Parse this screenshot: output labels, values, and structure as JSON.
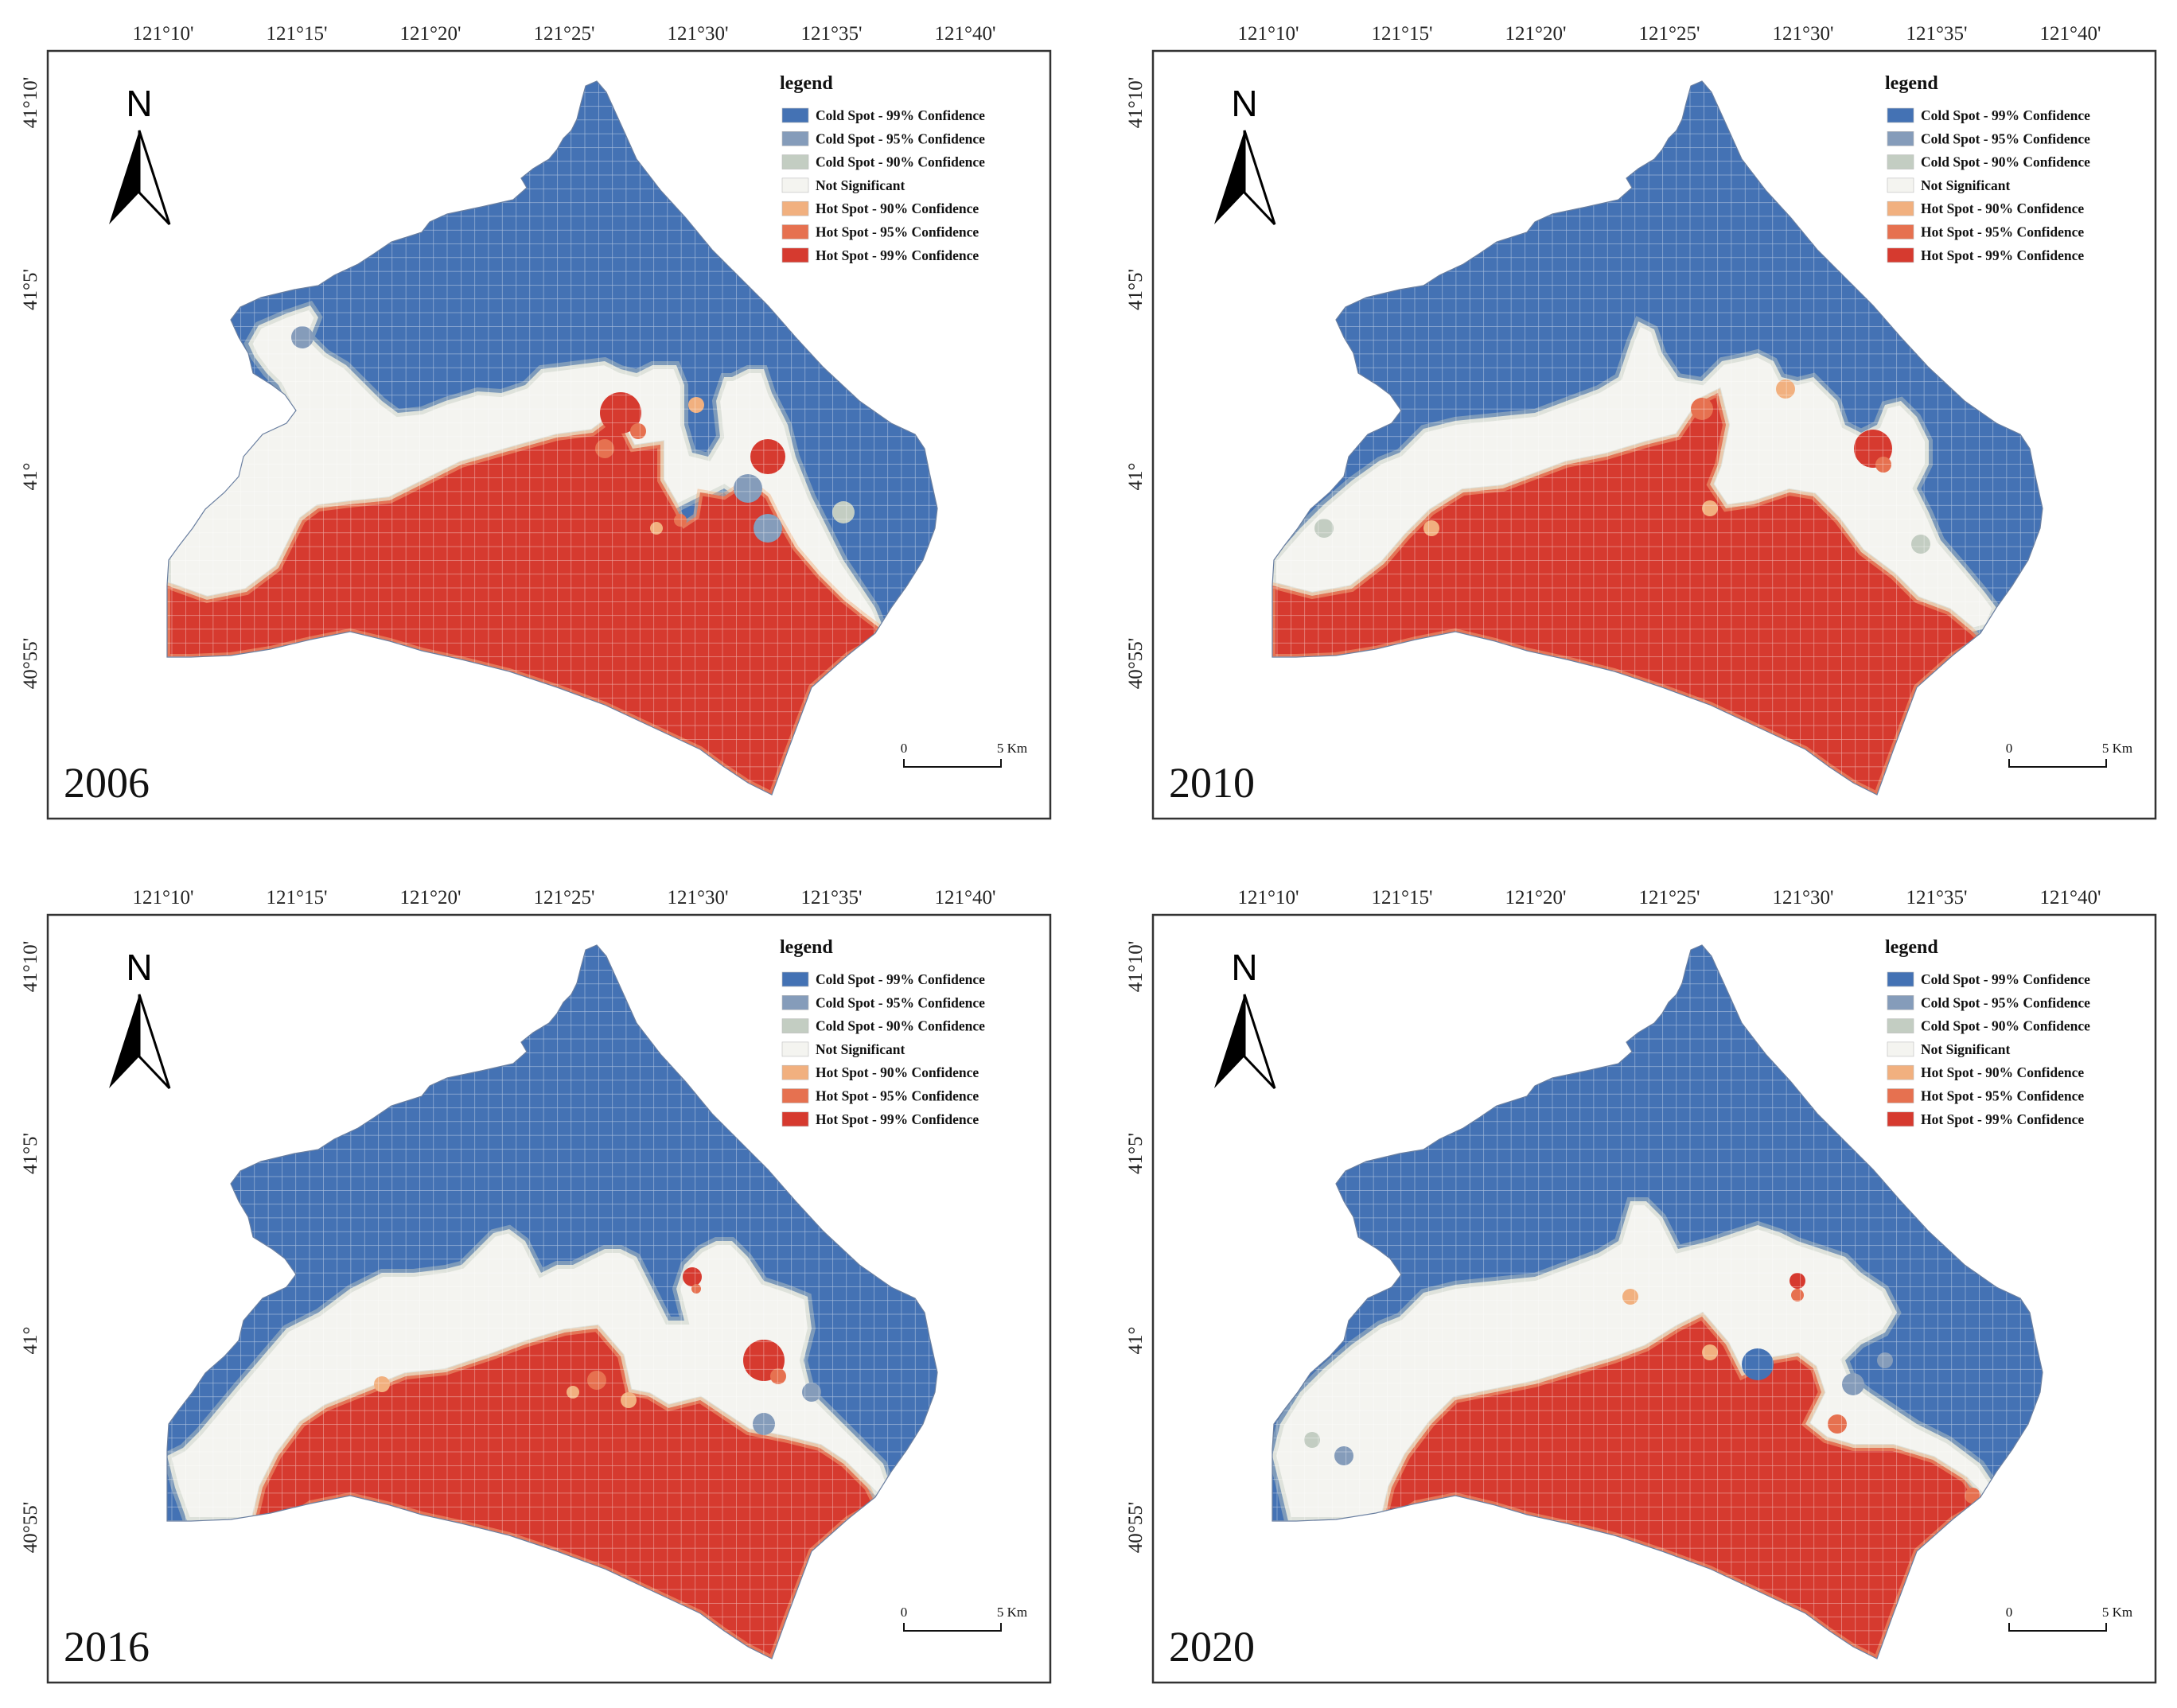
{
  "colors": {
    "cold99": "#4472b4",
    "cold95": "#859cba",
    "cold90": "#c3cdc2",
    "notsig": "#f4f4f0",
    "hot90": "#f1b07f",
    "hot95": "#e67150",
    "hot99": "#d63a2f",
    "frame": "#333333",
    "grid": "#ffffff"
  },
  "lon_ticks": [
    "121°10'",
    "121°15'",
    "121°20'",
    "121°25'",
    "121°30'",
    "121°35'",
    "121°40'"
  ],
  "lat_ticks": [
    "41°10'",
    "41°5'",
    "41°",
    "40°55'"
  ],
  "legend": {
    "title": "legend",
    "items": [
      {
        "label": "Cold Spot - 99% Confidence",
        "color_key": "cold99"
      },
      {
        "label": "Cold Spot - 95% Confidence",
        "color_key": "cold95"
      },
      {
        "label": "Cold Spot - 90% Confidence",
        "color_key": "cold90"
      },
      {
        "label": "Not Significant",
        "color_key": "notsig"
      },
      {
        "label": "Hot Spot - 90% Confidence",
        "color_key": "hot90"
      },
      {
        "label": "Hot Spot - 95% Confidence",
        "color_key": "hot95"
      },
      {
        "label": "Hot Spot - 99% Confidence",
        "color_key": "hot99"
      }
    ]
  },
  "north_arrow": {
    "letter": "N",
    "icon": "north-arrow-icon"
  },
  "scale_bar": {
    "start": "0",
    "end": "5 Km"
  },
  "panels": [
    {
      "year": "2006"
    },
    {
      "year": "2010"
    },
    {
      "year": "2016"
    },
    {
      "year": "2020"
    }
  ]
}
